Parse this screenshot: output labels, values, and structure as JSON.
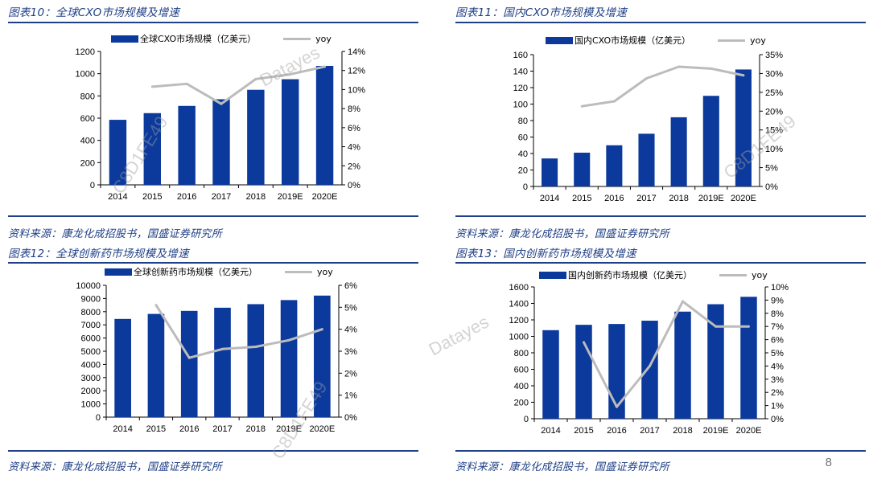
{
  "colors": {
    "bar": "#0b3a9c",
    "line": "#bcbcbc",
    "accent": "#1f3f86"
  },
  "page_number": "8",
  "watermarks": [
    "Datayes",
    "C8D1FE49"
  ],
  "chart_data": [
    {
      "type": "bar",
      "title": "图表10：全球CXO市场规模及增速",
      "source": "资料来源：康龙化成招股书，国盛证券研究所",
      "categories": [
        "2014",
        "2015",
        "2016",
        "2017",
        "2018",
        "2019E",
        "2020E"
      ],
      "series": [
        {
          "name": "全球CXO市场规模（亿美元）",
          "kind": "bar",
          "axis": "left",
          "values": [
            585,
            645,
            710,
            770,
            855,
            950,
            1070
          ]
        },
        {
          "name": "yoy",
          "kind": "line",
          "axis": "right",
          "values": [
            null,
            10.3,
            10.6,
            8.5,
            11.1,
            11.6,
            12.4
          ]
        }
      ],
      "y_left": {
        "min": 0,
        "max": 1200,
        "step": 200,
        "ticks": [
          "0",
          "200",
          "400",
          "600",
          "800",
          "1000",
          "1200"
        ]
      },
      "y_right": {
        "min": 0,
        "max": 14,
        "step": 2,
        "ticks": [
          "0%",
          "2%",
          "4%",
          "6%",
          "8%",
          "10%",
          "12%",
          "14%"
        ]
      },
      "legend_position": "top"
    },
    {
      "type": "bar",
      "title": "图表11：国内CXO市场规模及增速",
      "source": "资料来源：康龙化成招股书，国盛证券研究所",
      "categories": [
        "2014",
        "2015",
        "2016",
        "2017",
        "2018",
        "2019E",
        "2020E"
      ],
      "series": [
        {
          "name": "国内CXO市场规模（亿美元）",
          "kind": "bar",
          "axis": "left",
          "values": [
            34,
            41,
            50,
            64,
            84,
            110,
            142
          ]
        },
        {
          "name": "yoy",
          "kind": "line",
          "axis": "right",
          "values": [
            null,
            21.3,
            22.6,
            28.7,
            31.8,
            31.3,
            29.5
          ]
        }
      ],
      "y_left": {
        "min": 0,
        "max": 160,
        "step": 20,
        "ticks": [
          "0",
          "20",
          "40",
          "60",
          "80",
          "100",
          "120",
          "140",
          "160"
        ]
      },
      "y_right": {
        "min": 0,
        "max": 35,
        "step": 5,
        "ticks": [
          "0%",
          "5%",
          "10%",
          "15%",
          "20%",
          "25%",
          "30%",
          "35%"
        ]
      },
      "legend_position": "top"
    },
    {
      "type": "bar",
      "title": "图表12：全球创新药市场规模及增速",
      "source": "资料来源：康龙化成招股书，国盛证券研究所",
      "categories": [
        "2014",
        "2015",
        "2016",
        "2017",
        "2018",
        "2019E",
        "2020E"
      ],
      "series": [
        {
          "name": "全球创新药市场规模（亿美元）",
          "kind": "bar",
          "axis": "left",
          "values": [
            7450,
            7830,
            8060,
            8300,
            8570,
            8880,
            9220
          ]
        },
        {
          "name": "yoy",
          "kind": "line",
          "axis": "right",
          "values": [
            null,
            5.1,
            2.7,
            3.1,
            3.2,
            3.5,
            4.0
          ]
        }
      ],
      "y_left": {
        "min": 0,
        "max": 10000,
        "step": 1000,
        "ticks": [
          "0",
          "1000",
          "2000",
          "3000",
          "4000",
          "5000",
          "6000",
          "7000",
          "8000",
          "9000",
          "10000"
        ]
      },
      "y_right": {
        "min": 0,
        "max": 6,
        "step": 1,
        "ticks": [
          "0%",
          "1%",
          "2%",
          "3%",
          "4%",
          "5%",
          "6%"
        ]
      },
      "legend_position": "top"
    },
    {
      "type": "bar",
      "title": "图表13：国内创新药市场规模及增速",
      "source": "资料来源：康龙化成招股书，国盛证券研究所",
      "categories": [
        "2014",
        "2015",
        "2016",
        "2017",
        "2018",
        "2019E",
        "2020E"
      ],
      "series": [
        {
          "name": "国内创新药市场规模（亿美元）",
          "kind": "bar",
          "axis": "left",
          "values": [
            1075,
            1140,
            1150,
            1190,
            1300,
            1390,
            1480
          ]
        },
        {
          "name": "yoy",
          "kind": "line",
          "axis": "right",
          "values": [
            null,
            5.8,
            0.9,
            4.0,
            8.9,
            7.0,
            7.0
          ]
        }
      ],
      "y_left": {
        "min": 0,
        "max": 1600,
        "step": 200,
        "ticks": [
          "0",
          "200",
          "400",
          "600",
          "800",
          "1000",
          "1200",
          "1400",
          "1600"
        ]
      },
      "y_right": {
        "min": 0,
        "max": 10,
        "step": 1,
        "ticks": [
          "0%",
          "1%",
          "2%",
          "3%",
          "4%",
          "5%",
          "6%",
          "7%",
          "8%",
          "9%",
          "10%"
        ]
      },
      "legend_position": "top"
    }
  ]
}
